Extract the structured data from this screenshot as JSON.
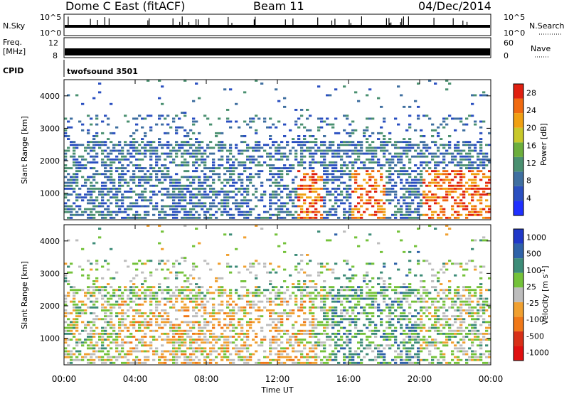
{
  "header": {
    "station": "Dome C East (fitACF)",
    "beam": "Beam 11",
    "date": "04/Dec/2014"
  },
  "panels": {
    "nsky": {
      "label": "N.Sky",
      "ticks_left": [
        "10^5",
        "10^0"
      ],
      "ticks_right": [
        "10^5",
        "10^0"
      ],
      "right_label": "N.Search"
    },
    "freq": {
      "label_line1": "Freq.",
      "label_line2": "[MHz]",
      "tick_left_top": "12",
      "tick_left_bottom": "8",
      "tick_right_top": "60",
      "tick_right_bottom": "0",
      "right_label": "Nave"
    },
    "cpid": {
      "label": "CPID",
      "program": "twofsound 3501"
    }
  },
  "colors": {
    "power_scale": [
      "#1f30ff",
      "#2a4fc0",
      "#3f6fa0",
      "#4a9070",
      "#6cae3c",
      "#c8c82a",
      "#f0a012",
      "#f06a10",
      "#e02010"
    ],
    "velocity_scale": [
      "#2038c8",
      "#2f62a8",
      "#3d8c78",
      "#74c23a",
      "#bdbdbd",
      "#f0a030",
      "#f07818",
      "#d83018",
      "#e01010"
    ]
  },
  "chart_data": [
    {
      "type": "heatmap",
      "title": "Power",
      "xlabel": "Time UT",
      "ylabel": "Slant Range [km]",
      "x_ticks": [
        "00:00",
        "04:00",
        "08:00",
        "12:00",
        "16:00",
        "20:00",
        "00:00"
      ],
      "xlim_hours": [
        0,
        24
      ],
      "y_ticks": [
        1000,
        2000,
        3000,
        4000
      ],
      "ylim": [
        180,
        4500
      ],
      "colorbar": {
        "label": "Power [dB]",
        "ticks": [
          4,
          8,
          12,
          16,
          20,
          24,
          28
        ],
        "range": [
          0,
          30
        ]
      }
    },
    {
      "type": "heatmap",
      "title": "Velocity",
      "xlabel": "Time UT",
      "ylabel": "Slant Range [km]",
      "x_ticks": [
        "00:00",
        "04:00",
        "08:00",
        "12:00",
        "16:00",
        "20:00",
        "00:00"
      ],
      "xlim_hours": [
        0,
        24
      ],
      "y_ticks": [
        1000,
        2000,
        3000,
        4000
      ],
      "ylim": [
        180,
        4500
      ],
      "colorbar": {
        "label": "Velocity [m s",
        "label_sup": "-1",
        "label_close": "]",
        "ticks": [
          "1000",
          "500",
          "100",
          "25",
          "-25",
          "-100",
          "-500",
          "-1000"
        ]
      }
    }
  ]
}
